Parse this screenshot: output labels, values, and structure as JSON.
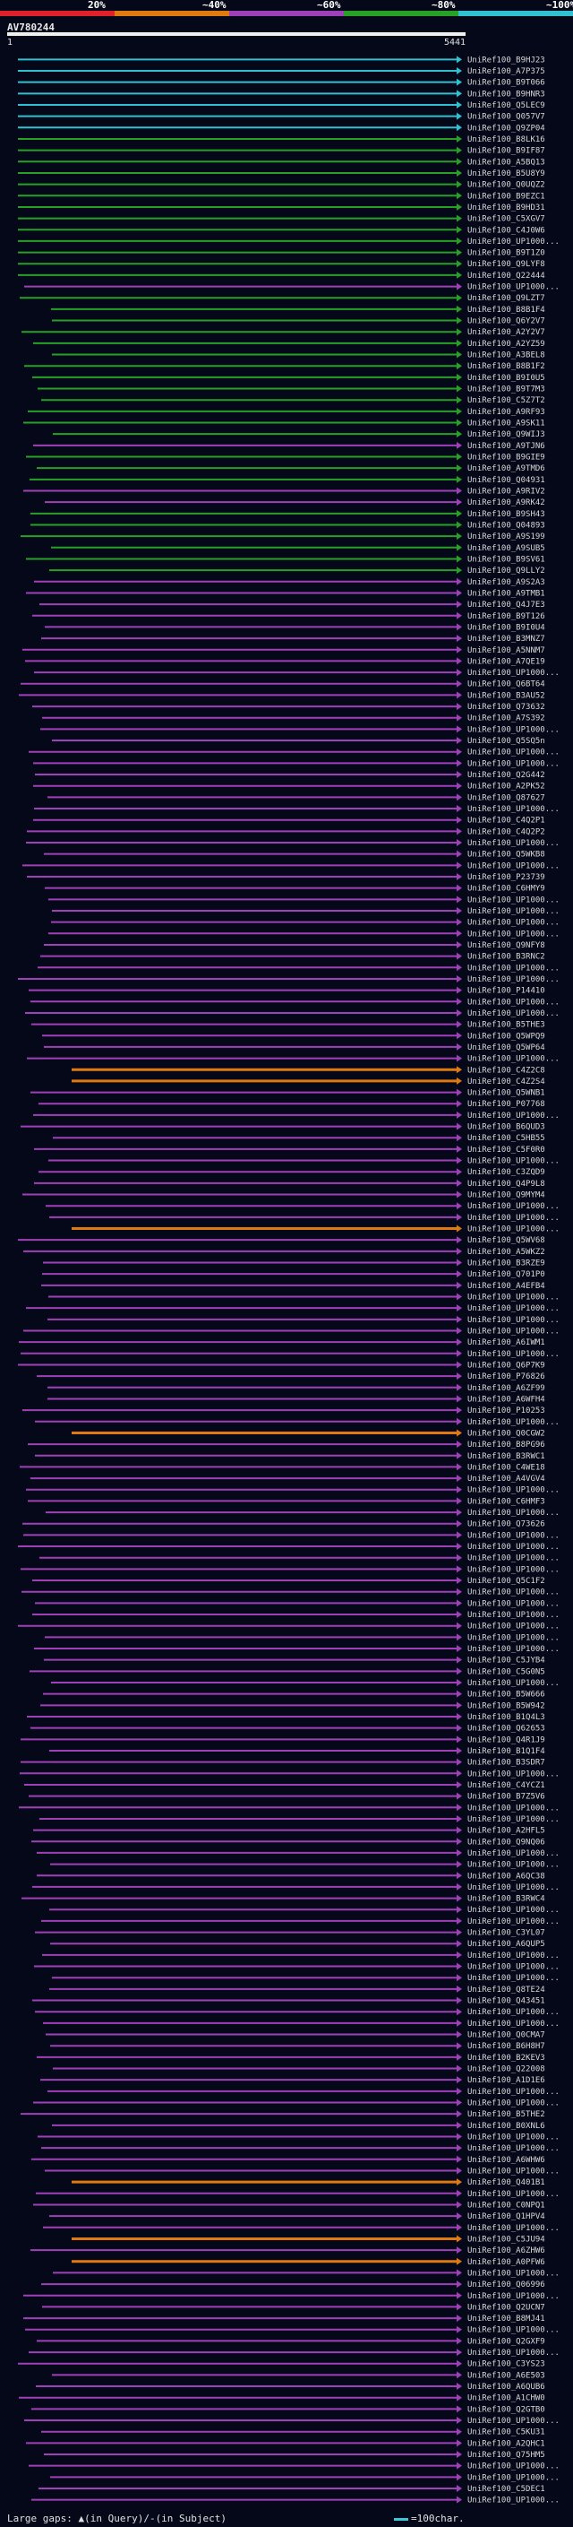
{
  "query": {
    "id": "AV780244",
    "start": "1",
    "end": "5441"
  },
  "legend": [
    {
      "label": "20%",
      "color": "#e0202a"
    },
    {
      "label": "~40%",
      "color": "#e07a10"
    },
    {
      "label": "~60%",
      "color": "#a040b8"
    },
    {
      "label": "~80%",
      "color": "#28a028"
    },
    {
      "label": "~100%",
      "color": "#30c0d0"
    }
  ],
  "footer": {
    "gaps": "Large gaps: ▲(in Query)/-(in Subject)",
    "scale": "=100char."
  },
  "hits": [
    {
      "label": "UniRef100_B9HJ23",
      "kind": "c"
    },
    {
      "label": "UniRef100_A7P375",
      "kind": "c"
    },
    {
      "label": "UniRef100_B9T066",
      "kind": "c"
    },
    {
      "label": "UniRef100_B9HNR3",
      "kind": "c"
    },
    {
      "label": "UniRef100_Q5LEC9",
      "kind": "c"
    },
    {
      "label": "UniRef100_Q057V7",
      "kind": "c"
    },
    {
      "label": "UniRef100_Q9ZP04",
      "kind": "c"
    },
    {
      "label": "UniRef100_B8LK16",
      "kind": "g"
    },
    {
      "label": "UniRef100_B9IF87",
      "kind": "g"
    },
    {
      "label": "UniRef100_A5BQ13",
      "kind": "g"
    },
    {
      "label": "UniRef100_B5U8Y9",
      "kind": "g"
    },
    {
      "label": "UniRef100_Q0UQZ2",
      "kind": "g"
    },
    {
      "label": "UniRef100_B9EZC1",
      "kind": "g"
    },
    {
      "label": "UniRef100_B9HD31",
      "kind": "g"
    },
    {
      "label": "UniRef100_C5XGV7",
      "kind": "g"
    },
    {
      "label": "UniRef100_C4J0W6",
      "kind": "g"
    },
    {
      "label": "UniRef100_UP1000...",
      "kind": "g"
    },
    {
      "label": "UniRef100_B9T1Z0",
      "kind": "g"
    },
    {
      "label": "UniRef100_Q9LYF8",
      "kind": "g"
    },
    {
      "label": "UniRef100_Q22444",
      "kind": "g"
    },
    {
      "label": "UniRef100_UP1000...",
      "kind": "m"
    },
    {
      "label": "UniRef100_Q9LZT7",
      "kind": "g"
    },
    {
      "label": "UniRef100_B8B1F4",
      "kind": "g"
    },
    {
      "label": "UniRef100_Q6Y2V7",
      "kind": "g"
    },
    {
      "label": "UniRef100_A2Y2V7",
      "kind": "g"
    },
    {
      "label": "UniRef100_A2YZ59",
      "kind": "g"
    },
    {
      "label": "UniRef100_A3BEL8",
      "kind": "g"
    },
    {
      "label": "UniRef100_B8B1F2",
      "kind": "g"
    },
    {
      "label": "UniRef100_B9I0U5",
      "kind": "g"
    },
    {
      "label": "UniRef100_B9T7M3",
      "kind": "g"
    },
    {
      "label": "UniRef100_C5Z7T2",
      "kind": "g"
    },
    {
      "label": "UniRef100_A9RF93",
      "kind": "g"
    },
    {
      "label": "UniRef100_A9SK11",
      "kind": "g"
    },
    {
      "label": "UniRef100_Q9WIJ3",
      "kind": "g"
    },
    {
      "label": "UniRef100_A9TJN6",
      "kind": "m"
    },
    {
      "label": "UniRef100_B9GIE9",
      "kind": "g"
    },
    {
      "label": "UniRef100_A9TMD6",
      "kind": "g"
    },
    {
      "label": "UniRef100_Q04931",
      "kind": "g"
    },
    {
      "label": "UniRef100_A9RIV2",
      "kind": "m"
    },
    {
      "label": "UniRef100_A9RK42",
      "kind": "m"
    },
    {
      "label": "UniRef100_B9SH43",
      "kind": "g"
    },
    {
      "label": "UniRef100_Q04893",
      "kind": "g"
    },
    {
      "label": "UniRef100_A9S199",
      "kind": "g"
    },
    {
      "label": "UniRef100_A9SUB5",
      "kind": "g"
    },
    {
      "label": "UniRef100_B9SV61",
      "kind": "g"
    },
    {
      "label": "UniRef100_Q9LLY2",
      "kind": "g"
    },
    {
      "label": "UniRef100_A9S2A3",
      "kind": "m"
    },
    {
      "label": "UniRef100_A9TMB1",
      "kind": "m"
    },
    {
      "label": "UniRef100_Q4J7E3",
      "kind": "m"
    },
    {
      "label": "UniRef100_B9T126",
      "kind": "m"
    },
    {
      "label": "UniRef100_B9I0U4",
      "kind": "m"
    },
    {
      "label": "UniRef100_B3MNZ7",
      "kind": "m"
    },
    {
      "label": "UniRef100_A5NNM7",
      "kind": "m"
    },
    {
      "label": "UniRef100_A7QE19",
      "kind": "m"
    },
    {
      "label": "UniRef100_UP1000...",
      "kind": "m"
    },
    {
      "label": "UniRef100_Q6BT64",
      "kind": "m"
    },
    {
      "label": "UniRef100_B3AU52",
      "kind": "m"
    },
    {
      "label": "UniRef100_Q73632",
      "kind": "m"
    },
    {
      "label": "UniRef100_A7S392",
      "kind": "m"
    },
    {
      "label": "UniRef100_UP1000...",
      "kind": "m"
    },
    {
      "label": "UniRef100_Q5SQ5n",
      "kind": "m"
    },
    {
      "label": "UniRef100_UP1000...",
      "kind": "m"
    },
    {
      "label": "UniRef100_UP1000...",
      "kind": "m"
    },
    {
      "label": "UniRef100_Q2G442",
      "kind": "m"
    },
    {
      "label": "UniRef100_A2PK52",
      "kind": "m"
    },
    {
      "label": "UniRef100_Q87627",
      "kind": "m"
    },
    {
      "label": "UniRef100_UP1000...",
      "kind": "m"
    },
    {
      "label": "UniRef100_C4Q2P1",
      "kind": "m"
    },
    {
      "label": "UniRef100_C4Q2P2",
      "kind": "m"
    },
    {
      "label": "UniRef100_UP1000...",
      "kind": "m"
    },
    {
      "label": "UniRef100_Q5WKB8",
      "kind": "m"
    },
    {
      "label": "UniRef100_UP1000...",
      "kind": "m"
    },
    {
      "label": "UniRef100_P23739",
      "kind": "m"
    },
    {
      "label": "UniRef100_C6HMY9",
      "kind": "m"
    },
    {
      "label": "UniRef100_UP1000...",
      "kind": "m"
    },
    {
      "label": "UniRef100_UP1000...",
      "kind": "m"
    },
    {
      "label": "UniRef100_UP1000...",
      "kind": "m"
    },
    {
      "label": "UniRef100_UP1000...",
      "kind": "m"
    },
    {
      "label": "UniRef100_Q9NFY8",
      "kind": "m"
    },
    {
      "label": "UniRef100_B3RNC2",
      "kind": "m"
    },
    {
      "label": "UniRef100_UP1000...",
      "kind": "m"
    },
    {
      "label": "UniRef100_UP1000...",
      "kind": "m"
    },
    {
      "label": "UniRef100_P14410",
      "kind": "m"
    },
    {
      "label": "UniRef100_UP1000...",
      "kind": "m"
    },
    {
      "label": "UniRef100_UP1000...",
      "kind": "m"
    },
    {
      "label": "UniRef100_B5THE3",
      "kind": "m"
    },
    {
      "label": "UniRef100_Q5WPQ9",
      "kind": "m"
    },
    {
      "label": "UniRef100_Q5WP64",
      "kind": "m"
    },
    {
      "label": "UniRef100_UP1000...",
      "kind": "m"
    },
    {
      "label": "UniRef100_C4Z2C8",
      "kind": "o"
    },
    {
      "label": "UniRef100_C4Z2S4",
      "kind": "o"
    },
    {
      "label": "UniRef100_Q5WNB1",
      "kind": "m"
    },
    {
      "label": "UniRef100_P07768",
      "kind": "m"
    },
    {
      "label": "UniRef100_UP1000...",
      "kind": "m"
    },
    {
      "label": "UniRef100_B6QUD3",
      "kind": "m"
    },
    {
      "label": "UniRef100_C5HB55",
      "kind": "m"
    },
    {
      "label": "UniRef100_C5F0R0",
      "kind": "m"
    },
    {
      "label": "UniRef100_UP1000...",
      "kind": "m"
    },
    {
      "label": "UniRef100_C3ZQD9",
      "kind": "m"
    },
    {
      "label": "UniRef100_Q4P9L8",
      "kind": "m"
    },
    {
      "label": "UniRef100_Q9MYM4",
      "kind": "m"
    },
    {
      "label": "UniRef100_UP1000...",
      "kind": "m"
    },
    {
      "label": "UniRef100_UP1000...",
      "kind": "m"
    },
    {
      "label": "UniRef100_UP1000...",
      "kind": "o"
    },
    {
      "label": "UniRef100_Q5WV68",
      "kind": "m"
    },
    {
      "label": "UniRef100_A5WKZ2",
      "kind": "m"
    },
    {
      "label": "UniRef100_B3RZE9",
      "kind": "m"
    },
    {
      "label": "UniRef100_Q701P0",
      "kind": "m"
    },
    {
      "label": "UniRef100_A4EFB4",
      "kind": "m"
    },
    {
      "label": "UniRef100_UP1000...",
      "kind": "m"
    },
    {
      "label": "UniRef100_UP1000...",
      "kind": "m"
    },
    {
      "label": "UniRef100_UP1000...",
      "kind": "m"
    },
    {
      "label": "UniRef100_UP1000...",
      "kind": "m"
    },
    {
      "label": "UniRef100_A6IWM1",
      "kind": "m"
    },
    {
      "label": "UniRef100_UP1000...",
      "kind": "m"
    },
    {
      "label": "UniRef100_Q6P7K9",
      "kind": "m"
    },
    {
      "label": "UniRef100_P76826",
      "kind": "m"
    },
    {
      "label": "UniRef100_A6ZF99",
      "kind": "m"
    },
    {
      "label": "UniRef100_A6WFH4",
      "kind": "m"
    },
    {
      "label": "UniRef100_P10253",
      "kind": "m"
    },
    {
      "label": "UniRef100_UP1000...",
      "kind": "m"
    },
    {
      "label": "UniRef100_Q0CGW2",
      "kind": "o"
    },
    {
      "label": "UniRef100_B8PG96",
      "kind": "m"
    },
    {
      "label": "UniRef100_B3RWC1",
      "kind": "m"
    },
    {
      "label": "UniRef100_C4WE18",
      "kind": "m"
    },
    {
      "label": "UniRef100_A4VGV4",
      "kind": "m"
    },
    {
      "label": "UniRef100_UP1000...",
      "kind": "m"
    },
    {
      "label": "UniRef100_C6HMF3",
      "kind": "m"
    },
    {
      "label": "UniRef100_UP1000...",
      "kind": "m"
    },
    {
      "label": "UniRef100_Q73626",
      "kind": "m"
    },
    {
      "label": "UniRef100_UP1000...",
      "kind": "m"
    },
    {
      "label": "UniRef100_UP1000...",
      "kind": "m"
    },
    {
      "label": "UniRef100_UP1000...",
      "kind": "m"
    },
    {
      "label": "UniRef100_UP1000...",
      "kind": "m"
    },
    {
      "label": "UniRef100_Q5C1F2",
      "kind": "m"
    },
    {
      "label": "UniRef100_UP1000...",
      "kind": "m"
    },
    {
      "label": "UniRef100_UP1000...",
      "kind": "m"
    },
    {
      "label": "UniRef100_UP1000...",
      "kind": "m"
    },
    {
      "label": "UniRef100_UP1000...",
      "kind": "m"
    },
    {
      "label": "UniRef100_UP1000...",
      "kind": "m"
    },
    {
      "label": "UniRef100_UP1000...",
      "kind": "m"
    },
    {
      "label": "UniRef100_C5JYB4",
      "kind": "m"
    },
    {
      "label": "UniRef100_C5G0N5",
      "kind": "m"
    },
    {
      "label": "UniRef100_UP1000...",
      "kind": "m"
    },
    {
      "label": "UniRef100_B5W666",
      "kind": "m"
    },
    {
      "label": "UniRef100_B5W942",
      "kind": "m"
    },
    {
      "label": "UniRef100_B1Q4L3",
      "kind": "m"
    },
    {
      "label": "UniRef100_Q62653",
      "kind": "m"
    },
    {
      "label": "UniRef100_Q4R1J9",
      "kind": "m"
    },
    {
      "label": "UniRef100_B1Q1F4",
      "kind": "m"
    },
    {
      "label": "UniRef100_B3SDR7",
      "kind": "m"
    },
    {
      "label": "UniRef100_UP1000...",
      "kind": "m"
    },
    {
      "label": "UniRef100_C4YCZ1",
      "kind": "m"
    },
    {
      "label": "UniRef100_B7Z5V6",
      "kind": "m"
    },
    {
      "label": "UniRef100_UP1000...",
      "kind": "m"
    },
    {
      "label": "UniRef100_UP1000...",
      "kind": "m"
    },
    {
      "label": "UniRef100_A2HFL5",
      "kind": "m"
    },
    {
      "label": "UniRef100_Q9NQ06",
      "kind": "m"
    },
    {
      "label": "UniRef100_UP1000...",
      "kind": "m"
    },
    {
      "label": "UniRef100_UP1000...",
      "kind": "m"
    },
    {
      "label": "UniRef100_A6QC38",
      "kind": "m"
    },
    {
      "label": "UniRef100_UP1000...",
      "kind": "m"
    },
    {
      "label": "UniRef100_B3RWC4",
      "kind": "m"
    },
    {
      "label": "UniRef100_UP1000...",
      "kind": "m"
    },
    {
      "label": "UniRef100_UP1000...",
      "kind": "m"
    },
    {
      "label": "UniRef100_C3YL07",
      "kind": "m"
    },
    {
      "label": "UniRef100_A6QUP5",
      "kind": "m"
    },
    {
      "label": "UniRef100_UP1000...",
      "kind": "m"
    },
    {
      "label": "UniRef100_UP1000...",
      "kind": "m"
    },
    {
      "label": "UniRef100_UP1000...",
      "kind": "m"
    },
    {
      "label": "UniRef100_Q8TE24",
      "kind": "m"
    },
    {
      "label": "UniRef100_Q43451",
      "kind": "m"
    },
    {
      "label": "UniRef100_UP1000...",
      "kind": "m"
    },
    {
      "label": "UniRef100_UP1000...",
      "kind": "m"
    },
    {
      "label": "UniRef100_Q0CMA7",
      "kind": "m"
    },
    {
      "label": "UniRef100_B6H8H7",
      "kind": "m"
    },
    {
      "label": "UniRef100_B2KEV3",
      "kind": "m"
    },
    {
      "label": "UniRef100_Q22008",
      "kind": "m"
    },
    {
      "label": "UniRef100_A1D1E6",
      "kind": "m"
    },
    {
      "label": "UniRef100_UP1000...",
      "kind": "m"
    },
    {
      "label": "UniRef100_UP1000...",
      "kind": "m"
    },
    {
      "label": "UniRef100_B5THE2",
      "kind": "m"
    },
    {
      "label": "UniRef100_B0XNL6",
      "kind": "m"
    },
    {
      "label": "UniRef100_UP1000...",
      "kind": "m"
    },
    {
      "label": "UniRef100_UP1000...",
      "kind": "m"
    },
    {
      "label": "UniRef100_A6WHW6",
      "kind": "m"
    },
    {
      "label": "UniRef100_UP1000...",
      "kind": "m"
    },
    {
      "label": "UniRef100_Q401B1",
      "kind": "o"
    },
    {
      "label": "UniRef100_UP1000...",
      "kind": "m"
    },
    {
      "label": "UniRef100_C0NPQ1",
      "kind": "m"
    },
    {
      "label": "UniRef100_Q1HPV4",
      "kind": "m"
    },
    {
      "label": "UniRef100_UP1000...",
      "kind": "m"
    },
    {
      "label": "UniRef100_C5JU94",
      "kind": "o"
    },
    {
      "label": "UniRef100_A6ZHW6",
      "kind": "m"
    },
    {
      "label": "UniRef100_A0PFW6",
      "kind": "o"
    },
    {
      "label": "UniRef100_UP1000...",
      "kind": "m"
    },
    {
      "label": "UniRef100_Q06996",
      "kind": "m"
    },
    {
      "label": "UniRef100_UP1000...",
      "kind": "m"
    },
    {
      "label": "UniRef100_Q2UCN7",
      "kind": "m"
    },
    {
      "label": "UniRef100_B8MJ41",
      "kind": "m"
    },
    {
      "label": "UniRef100_UP1000...",
      "kind": "m"
    },
    {
      "label": "UniRef100_Q2GXF9",
      "kind": "m"
    },
    {
      "label": "UniRef100_UP1000...",
      "kind": "m"
    },
    {
      "label": "UniRef100_C3YS23",
      "kind": "m"
    },
    {
      "label": "UniRef100_A6E503",
      "kind": "m"
    },
    {
      "label": "UniRef100_A6QUB6",
      "kind": "m"
    },
    {
      "label": "UniRef100_A1CHW0",
      "kind": "m"
    },
    {
      "label": "UniRef100_Q2GTB0",
      "kind": "m"
    },
    {
      "label": "UniRef100_UP1000...",
      "kind": "m"
    },
    {
      "label": "UniRef100_C5KU31",
      "kind": "m"
    },
    {
      "label": "UniRef100_A2QHC1",
      "kind": "m"
    },
    {
      "label": "UniRef100_Q75HM5",
      "kind": "m"
    },
    {
      "label": "UniRef100_UP1000...",
      "kind": "m"
    },
    {
      "label": "UniRef100_UP1000...",
      "kind": "m"
    },
    {
      "label": "UniRef100_C5DEC1",
      "kind": "m"
    },
    {
      "label": "UniRef100_UP1000...",
      "kind": "m"
    }
  ]
}
